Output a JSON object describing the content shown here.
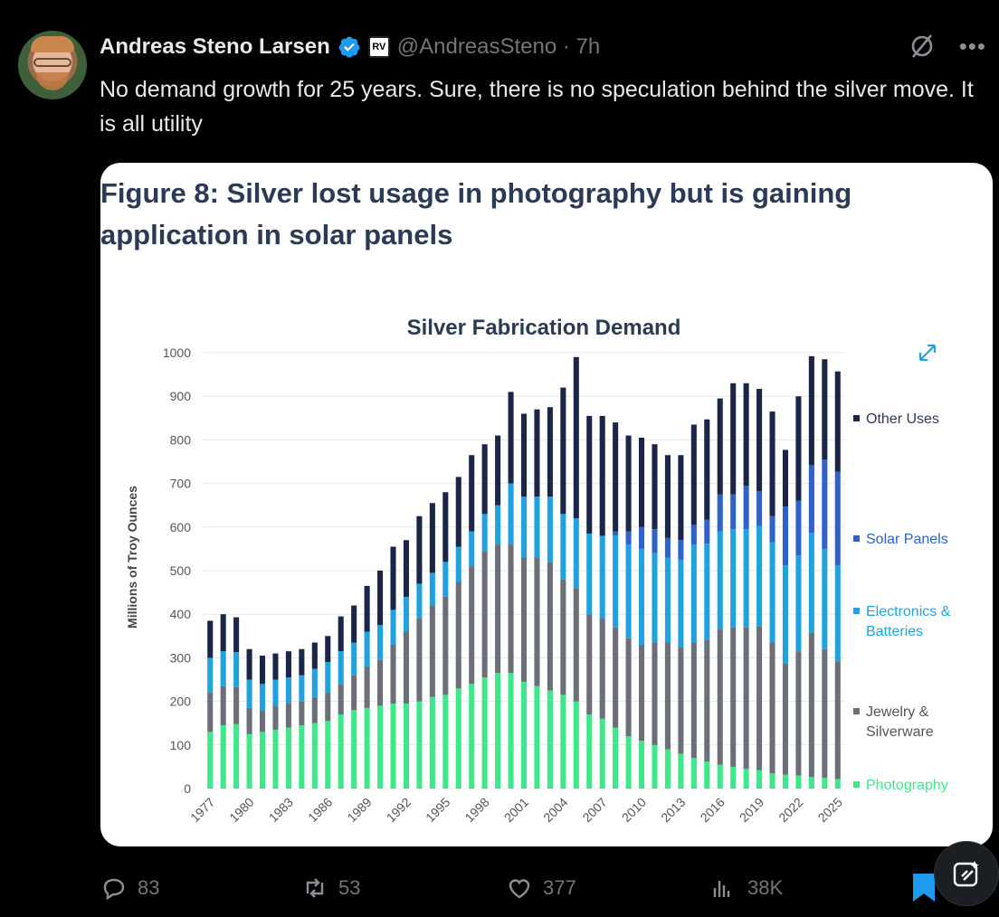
{
  "tweet": {
    "author_name": "Andreas Steno Larsen",
    "handle_time": "@AndreasSteno · 7h",
    "badge_text": "RV",
    "text": "No demand growth for 25 years. Sure, there is no speculation behind the silver move. It is all utility",
    "verified_color": "#1d9bf0"
  },
  "figure": {
    "caption": "Figure 8: Silver lost usage in photography but is gaining application in solar panels",
    "caption_color": "#2b3a55"
  },
  "chart_data": {
    "type": "bar",
    "stacked": true,
    "title": "Silver Fabrication Demand",
    "ylabel": "Millions of Troy Ounces",
    "xlabel": "",
    "ylim": [
      0,
      1000
    ],
    "yticks": [
      0,
      100,
      200,
      300,
      400,
      500,
      600,
      700,
      800,
      900,
      1000
    ],
    "xtick_labels": [
      "1977",
      "1980",
      "1983",
      "1986",
      "1989",
      "1992",
      "1995",
      "1998",
      "2001",
      "2004",
      "2007",
      "2010",
      "2013",
      "2016",
      "2019",
      "2022",
      "2025"
    ],
    "legend_position": "right",
    "categories": [
      1977,
      1978,
      1979,
      1980,
      1981,
      1982,
      1983,
      1984,
      1985,
      1986,
      1987,
      1988,
      1989,
      1990,
      1991,
      1992,
      1993,
      1994,
      1995,
      1996,
      1997,
      1998,
      1999,
      2000,
      2001,
      2002,
      2003,
      2004,
      2005,
      2006,
      2007,
      2008,
      2009,
      2010,
      2011,
      2012,
      2013,
      2014,
      2015,
      2016,
      2017,
      2018,
      2019,
      2020,
      2021,
      2022,
      2023,
      2024,
      2025
    ],
    "series": [
      {
        "name": "Photography",
        "color": "#3ee88a",
        "values": [
          130,
          145,
          148,
          125,
          130,
          135,
          140,
          145,
          150,
          155,
          170,
          180,
          185,
          190,
          195,
          195,
          200,
          210,
          215,
          230,
          240,
          255,
          265,
          265,
          245,
          235,
          225,
          215,
          200,
          170,
          160,
          140,
          120,
          110,
          100,
          90,
          80,
          70,
          62,
          55,
          50,
          45,
          42,
          35,
          32,
          30,
          27,
          25,
          22
        ]
      },
      {
        "name": "Jewelry & Silverware",
        "color": "#6b6f78",
        "values": [
          90,
          90,
          85,
          60,
          50,
          55,
          55,
          55,
          60,
          65,
          70,
          80,
          95,
          105,
          135,
          165,
          190,
          210,
          225,
          245,
          270,
          290,
          295,
          295,
          285,
          295,
          295,
          265,
          260,
          230,
          230,
          230,
          225,
          220,
          235,
          245,
          245,
          265,
          280,
          310,
          320,
          325,
          330,
          300,
          255,
          285,
          330,
          295,
          270
        ]
      },
      {
        "name": "Electronics & Batteries",
        "color": "#1fa3e0",
        "values": [
          80,
          80,
          80,
          65,
          60,
          60,
          60,
          60,
          65,
          70,
          75,
          75,
          80,
          80,
          80,
          80,
          80,
          75,
          80,
          80,
          80,
          85,
          90,
          140,
          140,
          140,
          150,
          150,
          160,
          185,
          190,
          210,
          215,
          220,
          205,
          195,
          200,
          225,
          220,
          225,
          225,
          225,
          230,
          230,
          225,
          220,
          230,
          230,
          220
        ]
      },
      {
        "name": "Solar Panels",
        "color": "#2f62c9",
        "values": [
          0,
          0,
          0,
          0,
          0,
          0,
          0,
          0,
          0,
          0,
          0,
          0,
          0,
          0,
          0,
          0,
          0,
          0,
          0,
          0,
          0,
          0,
          0,
          0,
          0,
          0,
          0,
          0,
          0,
          0,
          0,
          10,
          30,
          50,
          55,
          45,
          45,
          45,
          55,
          85,
          80,
          100,
          80,
          60,
          135,
          125,
          155,
          205,
          215
        ]
      },
      {
        "name": "Other Uses",
        "color": "#1b2547",
        "values": [
          85,
          85,
          80,
          70,
          65,
          60,
          60,
          60,
          60,
          60,
          80,
          85,
          105,
          125,
          145,
          130,
          155,
          160,
          160,
          160,
          175,
          160,
          160,
          210,
          190,
          200,
          205,
          290,
          370,
          270,
          275,
          250,
          220,
          205,
          195,
          190,
          195,
          230,
          230,
          220,
          255,
          235,
          235,
          240,
          130,
          240,
          250,
          230,
          230
        ]
      }
    ]
  },
  "actions": {
    "replies": "83",
    "reposts": "53",
    "likes": "377",
    "views": "38K"
  }
}
